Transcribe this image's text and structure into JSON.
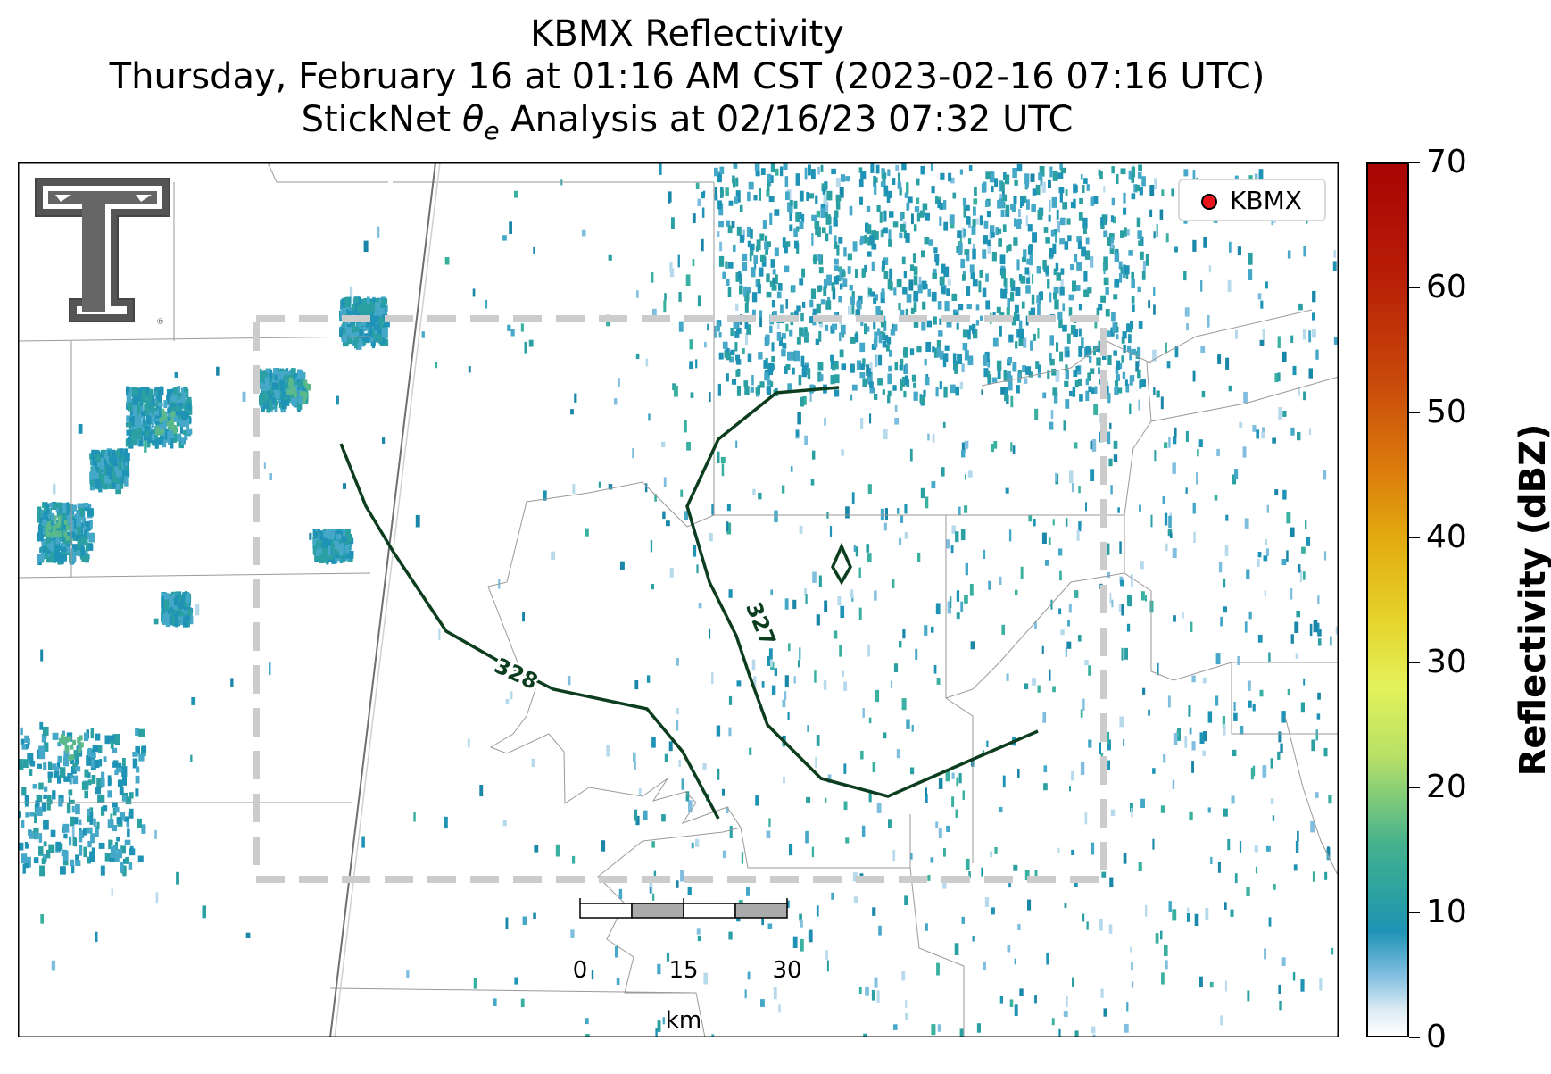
{
  "title": {
    "line1": "KBMX Reflectivity",
    "line2": "Thursday, February 16 at 01:16 AM CST (2023-02-16 07:16 UTC)",
    "line3_prefix": "StickNet ",
    "line3_symbol": "θ",
    "line3_subscript": "e",
    "line3_suffix": " Analysis at 02/16/23 07:32 UTC"
  },
  "legend": {
    "label": "KBMX",
    "marker_color": "#e8141c"
  },
  "colorbar": {
    "label": "Reflectivity (dBZ)",
    "ticks": [
      "0",
      "10",
      "20",
      "30",
      "40",
      "50",
      "60",
      "70"
    ],
    "range": [
      0,
      70
    ],
    "colormap": [
      "#ffffff",
      "#1f93b6",
      "#7cc97a",
      "#e3f25a",
      "#e2ab10",
      "#c94a0a",
      "#a80404"
    ]
  },
  "contours": {
    "color": "#0b3d1e",
    "labels": [
      "328",
      "327"
    ]
  },
  "scale_bar": {
    "ticks": [
      "0",
      "15",
      "30"
    ],
    "unit": "km"
  },
  "logo": {
    "name": "Texas Tech University Double T"
  },
  "colors": {
    "analysis_box": "#cccccc",
    "county_lines": "#9a9a9a",
    "state_line": "#777777"
  }
}
